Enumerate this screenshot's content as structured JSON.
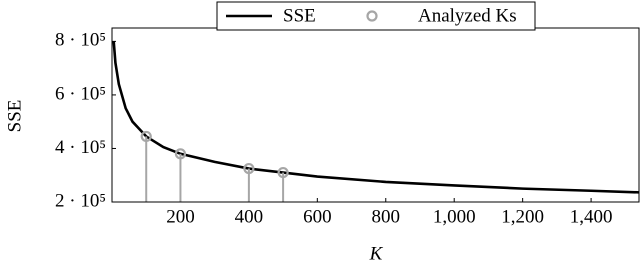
{
  "chart_data": {
    "type": "line",
    "xlabel": "K",
    "ylabel": "SSE",
    "series": [
      {
        "name": "SSE",
        "color": "#000000",
        "x": [
          5,
          10,
          20,
          40,
          60,
          100,
          150,
          200,
          300,
          400,
          500,
          600,
          800,
          1000,
          1200,
          1400,
          1540
        ],
        "values": [
          800000,
          720000,
          640000,
          550000,
          500000,
          445000,
          405000,
          380000,
          350000,
          325000,
          310000,
          295000,
          275000,
          262000,
          250000,
          242000,
          236000
        ]
      },
      {
        "name": "Analyzed Ks",
        "color": "#a6a6a6",
        "x": [
          100,
          200,
          400,
          500
        ],
        "values": [
          445000,
          380000,
          325000,
          310000
        ]
      }
    ],
    "xlim": [
      0,
      1540
    ],
    "ylim": [
      200000,
      850000
    ],
    "xticks": [
      200,
      400,
      600,
      800,
      {
        "value": 1000,
        "label": "1,000"
      },
      {
        "value": 1200,
        "label": "1,200"
      },
      {
        "value": 1400,
        "label": "1,400"
      }
    ],
    "yticks": [
      {
        "value": 200000,
        "label": "2 · 10⁵"
      },
      {
        "value": 400000,
        "label": "4 · 10⁵"
      },
      {
        "value": 600000,
        "label": "6 · 10⁵"
      },
      {
        "value": 800000,
        "label": "8 · 10⁵"
      }
    ],
    "legend": "top"
  }
}
